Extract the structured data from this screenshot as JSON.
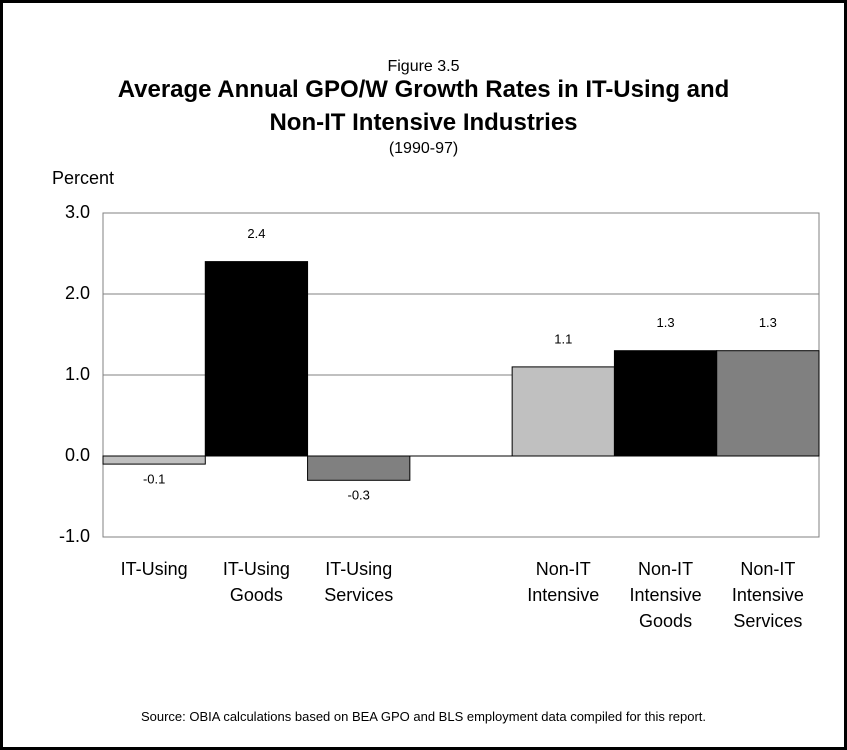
{
  "chart_data": {
    "type": "bar",
    "figure_label": "Figure 3.5",
    "title": "Average Annual GPO/W Growth Rates in IT-Using and Non-IT Intensive Industries",
    "subtitle": "(1990-97)",
    "y_label": "Percent",
    "categories": [
      "IT-Using",
      "IT-Using Goods",
      "IT-Using Services",
      null,
      "Non-IT Intensive",
      "Non-IT Intensive Goods",
      "Non-IT Intensive Services"
    ],
    "values": [
      -0.1,
      2.4,
      -0.3,
      null,
      1.1,
      1.3,
      1.3
    ],
    "colors": [
      "#c0c0c0",
      "#000000",
      "#808080",
      null,
      "#c0c0c0",
      "#000000",
      "#808080"
    ],
    "ylim": [
      -1,
      3
    ],
    "yticks": [
      {
        "value": -1,
        "label": "-1.0"
      },
      {
        "value": 0,
        "label": "0.0"
      },
      {
        "value": 1,
        "label": "1.0"
      },
      {
        "value": 2,
        "label": "2.0"
      },
      {
        "value": 3,
        "label": "3.0"
      }
    ],
    "grid": true,
    "source": "Source: OBIA calculations based on BEA GPO and BLS employment data compiled for this report."
  }
}
